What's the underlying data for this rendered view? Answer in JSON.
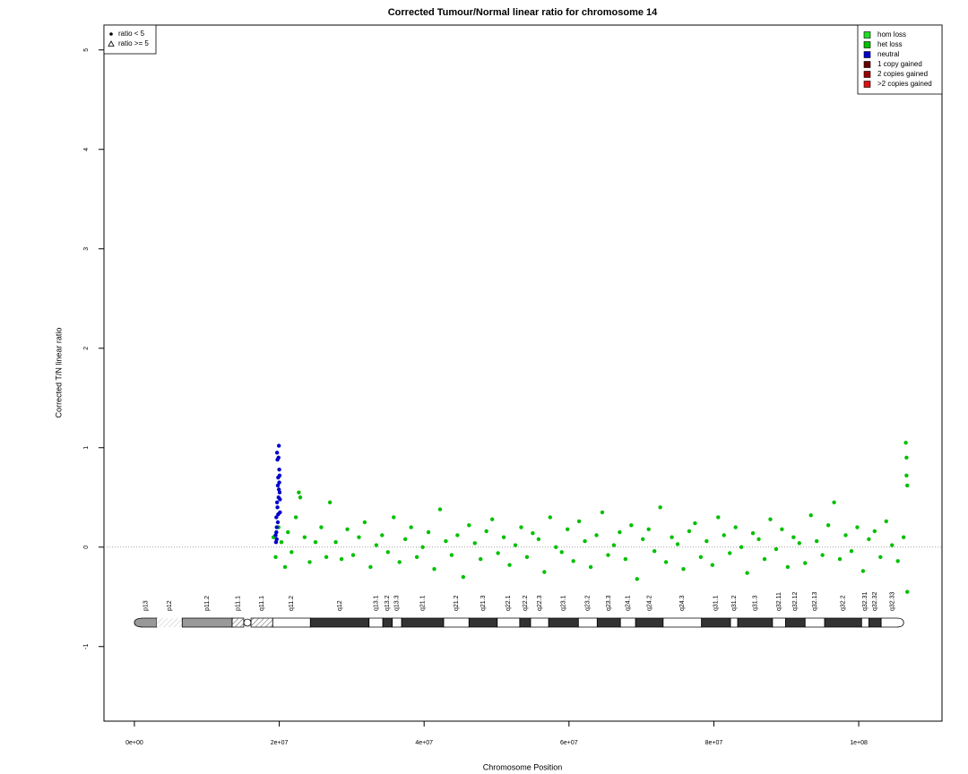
{
  "chart_data": {
    "type": "scatter",
    "title": "Corrected Tumour/Normal linear ratio for chromosome  14",
    "x_label": "Chromosome Position",
    "y_label": "Corrected T/N linear ratio",
    "xlim": [
      -4200000,
      111500000
    ],
    "ylim": [
      -1.75,
      5.25
    ],
    "xticks": [
      {
        "value": 0,
        "label": "0e+00"
      },
      {
        "value": 20000000,
        "label": "2e+07"
      },
      {
        "value": 40000000,
        "label": "4e+07"
      },
      {
        "value": 60000000,
        "label": "6e+07"
      },
      {
        "value": 80000000,
        "label": "8e+07"
      },
      {
        "value": 100000000,
        "label": "1e+08"
      }
    ],
    "yticks": [
      -1,
      0,
      1,
      2,
      3,
      4,
      5
    ],
    "reference_line": 0,
    "symbol_legend": {
      "position": "top-left",
      "items": [
        {
          "symbol": "dot",
          "label": "ratio < 5"
        },
        {
          "symbol": "triangle",
          "label": "ratio >= 5"
        }
      ]
    },
    "legend_position": "top-right",
    "series": [
      {
        "name": "hom loss",
        "color": "#22dd22",
        "x": [],
        "values": []
      },
      {
        "name": "het loss",
        "color": "#00c000",
        "x": [
          19200000,
          19500000,
          19900000,
          20300000,
          20800000,
          21200000,
          21700000,
          22300000,
          22700000,
          22900000,
          23500000,
          24200000,
          25000000,
          25800000,
          26500000,
          27000000,
          27800000,
          28600000,
          29400000,
          30200000,
          31000000,
          31800000,
          32600000,
          33400000,
          34200000,
          35000000,
          35800000,
          36600000,
          37400000,
          38200000,
          39000000,
          39800000,
          40600000,
          41400000,
          42200000,
          43000000,
          43800000,
          44600000,
          45400000,
          46200000,
          47000000,
          47800000,
          48600000,
          49400000,
          50200000,
          51000000,
          51800000,
          52600000,
          53400000,
          54200000,
          55000000,
          55800000,
          56600000,
          57400000,
          58200000,
          59000000,
          59800000,
          60600000,
          61400000,
          62200000,
          63000000,
          63800000,
          64600000,
          65400000,
          66200000,
          67000000,
          67800000,
          68600000,
          69400000,
          70200000,
          71000000,
          71800000,
          72600000,
          73400000,
          74200000,
          75000000,
          75800000,
          76600000,
          77400000,
          78200000,
          79000000,
          79800000,
          80600000,
          81400000,
          82200000,
          83000000,
          83800000,
          84600000,
          85400000,
          86200000,
          87000000,
          87800000,
          88600000,
          89400000,
          90200000,
          91000000,
          91800000,
          92600000,
          93400000,
          94200000,
          95000000,
          95800000,
          96600000,
          97400000,
          98200000,
          99000000,
          99800000,
          100600000,
          101400000,
          102200000,
          103000000,
          103800000,
          104600000,
          105400000,
          106200000,
          106500000,
          106600000,
          106600000,
          106700000,
          106700000
        ],
        "values": [
          0.1,
          -0.1,
          0.2,
          0.05,
          -0.2,
          0.15,
          -0.05,
          0.3,
          0.55,
          0.5,
          0.1,
          -0.15,
          0.05,
          0.2,
          -0.1,
          0.45,
          0.05,
          -0.12,
          0.18,
          -0.08,
          0.1,
          0.25,
          -0.2,
          0.02,
          0.12,
          -0.05,
          0.3,
          -0.15,
          0.08,
          0.2,
          -0.1,
          0.0,
          0.15,
          -0.22,
          0.38,
          0.06,
          -0.08,
          0.12,
          -0.3,
          0.22,
          0.04,
          -0.12,
          0.16,
          0.28,
          -0.06,
          0.1,
          -0.18,
          0.02,
          0.2,
          -0.1,
          0.14,
          0.08,
          -0.25,
          0.3,
          0.0,
          -0.05,
          0.18,
          -0.14,
          0.26,
          0.06,
          -0.2,
          0.12,
          0.35,
          -0.08,
          0.02,
          0.15,
          -0.12,
          0.22,
          -0.32,
          0.08,
          0.18,
          -0.04,
          0.4,
          -0.15,
          0.1,
          0.03,
          -0.22,
          0.16,
          0.24,
          -0.1,
          0.06,
          -0.18,
          0.3,
          0.12,
          -0.06,
          0.2,
          0.0,
          -0.26,
          0.14,
          0.08,
          -0.12,
          0.28,
          -0.02,
          0.18,
          -0.2,
          0.1,
          0.04,
          -0.16,
          0.32,
          0.06,
          -0.08,
          0.22,
          0.45,
          -0.12,
          0.12,
          -0.04,
          0.2,
          -0.24,
          0.08,
          0.16,
          -0.1,
          0.26,
          0.02,
          -0.14,
          0.1,
          1.05,
          0.9,
          0.72,
          0.62,
          -0.45
        ]
      },
      {
        "name": "neutral",
        "color": "#0000cc",
        "x": [
          19500000,
          19600000,
          19700000,
          19800000,
          19900000,
          19950000,
          20000000,
          20050000,
          19750000,
          19850000,
          19650000,
          19550000,
          20100000,
          19900000,
          19800000,
          19700000,
          20000000,
          19600000,
          19750000,
          20050000,
          19850000,
          19950000,
          19650000,
          20100000
        ],
        "values": [
          0.12,
          0.3,
          0.45,
          0.62,
          0.9,
          1.02,
          0.78,
          0.55,
          0.88,
          0.7,
          0.2,
          0.05,
          0.35,
          0.5,
          0.25,
          0.95,
          0.65,
          0.15,
          0.4,
          0.72,
          0.33,
          0.58,
          0.08,
          0.48
        ]
      },
      {
        "name": "1 copy gained",
        "color": "#660000",
        "x": [],
        "values": []
      },
      {
        "name": "2 copies gained",
        "color": "#990000",
        "x": [],
        "values": []
      },
      {
        "name": ">2 copies gained",
        "color": "#dd1111",
        "x": [],
        "values": []
      }
    ],
    "ideogram": {
      "bands": [
        {
          "label": "p13",
          "start": 0,
          "end": 3100000,
          "color": "#999999"
        },
        {
          "label": "p12",
          "start": 3100000,
          "end": 6600000,
          "color": "#ffffff",
          "hatch": true
        },
        {
          "label": "p11.2",
          "start": 6600000,
          "end": 13500000,
          "color": "#999999"
        },
        {
          "label": "p11.1",
          "start": 13500000,
          "end": 15100000,
          "color": "#ffffff",
          "hatch": true
        },
        {
          "label": "q11.1",
          "start": 16100000,
          "end": 19100000,
          "color": "#ffffff",
          "hatch": true
        },
        {
          "label": "q11.2",
          "start": 19100000,
          "end": 24300000,
          "color": "#ffffff"
        },
        {
          "label": "q12",
          "start": 24300000,
          "end": 32400000,
          "color": "#333333"
        },
        {
          "label": "q13.1",
          "start": 32400000,
          "end": 34300000,
          "color": "#ffffff"
        },
        {
          "label": "q13.2",
          "start": 34300000,
          "end": 35600000,
          "color": "#333333"
        },
        {
          "label": "q13.3",
          "start": 35600000,
          "end": 36900000,
          "color": "#ffffff"
        },
        {
          "label": "q21.1",
          "start": 36900000,
          "end": 42700000,
          "color": "#333333"
        },
        {
          "label": "q21.2",
          "start": 42700000,
          "end": 46200000,
          "color": "#ffffff"
        },
        {
          "label": "q21.3",
          "start": 46200000,
          "end": 50100000,
          "color": "#333333"
        },
        {
          "label": "q22.1",
          "start": 50100000,
          "end": 53200000,
          "color": "#ffffff"
        },
        {
          "label": "q22.2",
          "start": 53200000,
          "end": 54700000,
          "color": "#333333"
        },
        {
          "label": "q22.3",
          "start": 54700000,
          "end": 57200000,
          "color": "#ffffff"
        },
        {
          "label": "q23.1",
          "start": 57200000,
          "end": 61300000,
          "color": "#333333"
        },
        {
          "label": "q23.2",
          "start": 61300000,
          "end": 63900000,
          "color": "#ffffff"
        },
        {
          "label": "q23.3",
          "start": 63900000,
          "end": 67100000,
          "color": "#333333"
        },
        {
          "label": "q24.1",
          "start": 67100000,
          "end": 69200000,
          "color": "#ffffff"
        },
        {
          "label": "q24.2",
          "start": 69200000,
          "end": 73000000,
          "color": "#333333"
        },
        {
          "label": "q24.3",
          "start": 73000000,
          "end": 78300000,
          "color": "#ffffff"
        },
        {
          "label": "q31.1",
          "start": 78300000,
          "end": 82300000,
          "color": "#333333"
        },
        {
          "label": "q31.2",
          "start": 82300000,
          "end": 83300000,
          "color": "#ffffff"
        },
        {
          "label": "q31.3",
          "start": 83300000,
          "end": 88100000,
          "color": "#333333"
        },
        {
          "label": "q32.11",
          "start": 88100000,
          "end": 89900000,
          "color": "#ffffff"
        },
        {
          "label": "q32.12",
          "start": 89900000,
          "end": 92600000,
          "color": "#333333"
        },
        {
          "label": "q32.13",
          "start": 92600000,
          "end": 95300000,
          "color": "#ffffff"
        },
        {
          "label": "q32.2",
          "start": 95300000,
          "end": 100400000,
          "color": "#333333"
        },
        {
          "label": "q32.31",
          "start": 100400000,
          "end": 101400000,
          "color": "#ffffff"
        },
        {
          "label": "q32.32",
          "start": 101400000,
          "end": 103100000,
          "color": "#333333"
        },
        {
          "label": "q32.33",
          "start": 103100000,
          "end": 106200000,
          "color": "#ffffff"
        }
      ]
    }
  }
}
